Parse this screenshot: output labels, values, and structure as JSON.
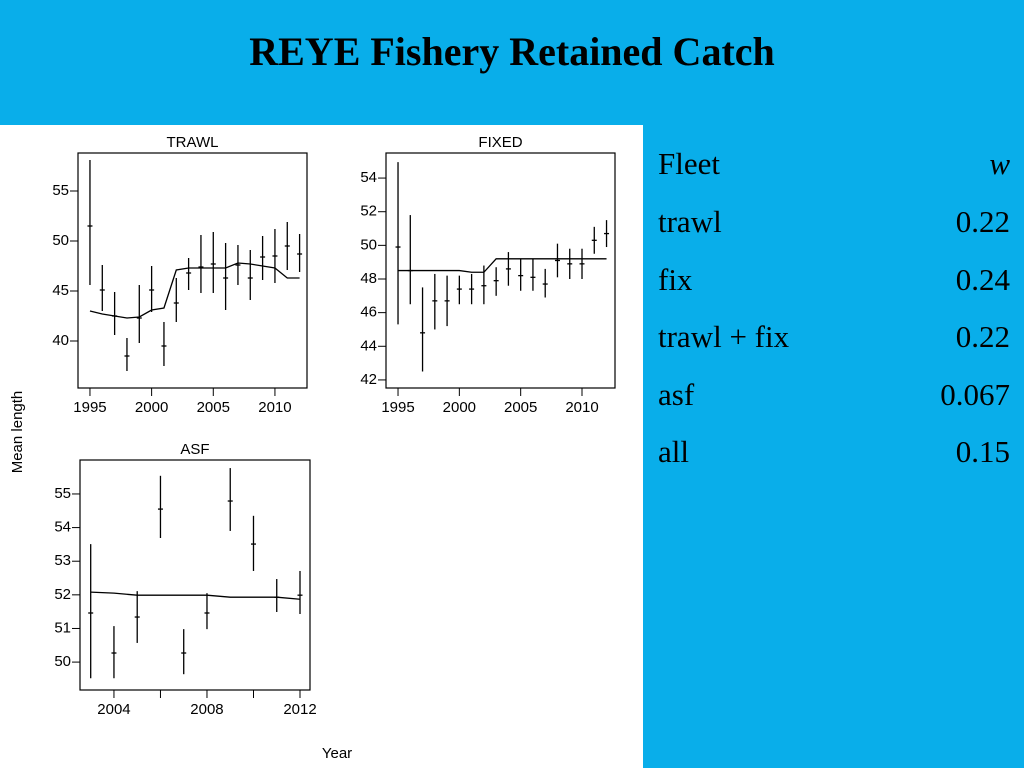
{
  "title": "REYE Fishery Retained Catch",
  "y_label": "Mean length",
  "x_label": "Year",
  "chart_data": [
    {
      "type": "errorbar",
      "title": "TRAWL",
      "x": [
        1995,
        1996,
        1997,
        1998,
        1999,
        2000,
        2001,
        2002,
        2003,
        2004,
        2005,
        2006,
        2007,
        2008,
        2009,
        2010,
        2011,
        2012
      ],
      "observed": {
        "color": "#000000",
        "values": [
          51.5,
          45.1,
          42.5,
          38.5,
          42.3,
          45.1,
          39.5,
          43.8,
          46.8,
          47.4,
          47.7,
          46.3,
          47.6,
          46.3,
          48.4,
          48.5,
          49.5,
          48.7
        ],
        "lower": [
          45.6,
          43,
          40.6,
          37,
          39.8,
          42.9,
          37.5,
          41.9,
          45.1,
          44.8,
          44.8,
          43.1,
          45.6,
          44.1,
          46.1,
          45.8,
          47.1,
          46.9
        ],
        "upper": [
          58.1,
          47.6,
          44.9,
          40.3,
          45.6,
          47.5,
          41.9,
          46.3,
          48.3,
          50.6,
          50.9,
          49.8,
          49.6,
          49.1,
          50.5,
          51.2,
          51.9,
          50.7
        ]
      },
      "fitted": [
        43,
        42.7,
        42.5,
        42.3,
        42.4,
        43.1,
        43.3,
        47.1,
        47.3,
        47.3,
        47.3,
        47.3,
        47.8,
        47.7,
        47.5,
        47.3,
        46.3,
        46.3
      ],
      "fitted_color": "#000000",
      "xlim": [
        1994.03,
        2012.6
      ],
      "xticks": [
        1995,
        2000,
        2005,
        2010
      ],
      "ylim": [
        35.3,
        58.8
      ],
      "yticks": [
        40,
        45,
        50,
        55
      ]
    },
    {
      "type": "errorbar",
      "title": "FIXED",
      "x": [
        1995,
        1996,
        1997,
        1998,
        1999,
        2000,
        2001,
        2002,
        2003,
        2004,
        2005,
        2006,
        2007,
        2008,
        2009,
        2010,
        2011,
        2012
      ],
      "observed": {
        "color": "#000000",
        "values": [
          49.9,
          48.5,
          44.8,
          46.7,
          46.7,
          47.4,
          47.4,
          47.6,
          47.9,
          48.6,
          48.2,
          48.1,
          47.7,
          49.1,
          48.9,
          48.9,
          50.3,
          50.7
        ],
        "lower": [
          45.3,
          46.5,
          42.5,
          45,
          45.2,
          46.5,
          46.5,
          46.5,
          47,
          47.6,
          47.3,
          47.3,
          46.9,
          48.1,
          48,
          48,
          49.5,
          49.9
        ],
        "upper": [
          54.95,
          51.8,
          47.5,
          48.3,
          48.2,
          48.2,
          48.3,
          48.8,
          48.7,
          49.6,
          49.2,
          49.2,
          48.6,
          50.1,
          49.8,
          49.8,
          51.1,
          51.5
        ]
      },
      "fitted": [
        48.5,
        48.5,
        48.5,
        48.5,
        48.5,
        48.5,
        48.4,
        48.4,
        49.2,
        49.2,
        49.2,
        49.2,
        49.2,
        49.2,
        49.2,
        49.2,
        49.2,
        49.2
      ],
      "fitted_color": "#000000",
      "xlim": [
        1994.02,
        2012.69
      ],
      "xticks": [
        1995,
        2000,
        2005,
        2010
      ],
      "ylim": [
        41.52,
        55.49
      ],
      "yticks": [
        42,
        44,
        46,
        48,
        50,
        52,
        54
      ]
    },
    {
      "type": "errorbar",
      "title": "ASF",
      "x": [
        2003,
        2004,
        2005,
        2006,
        2007,
        2008,
        2009,
        2010,
        2011,
        2012
      ],
      "observed": {
        "color": "#000000",
        "values": [
          51.46,
          50.27,
          51.34,
          54.55,
          50.27,
          51.46,
          54.79,
          53.51,
          51.93,
          51.99
        ],
        "lower": [
          49.52,
          49.52,
          50.57,
          53.69,
          49.64,
          50.98,
          53.9,
          52.71,
          51.49,
          51.43
        ],
        "upper": [
          53.51,
          51.07,
          52.11,
          55.54,
          50.98,
          52.05,
          55.77,
          54.35,
          52.47,
          52.71
        ]
      },
      "fitted": [
        52.08,
        52.05,
        51.99,
        51.99,
        51.99,
        51.99,
        51.93,
        51.93,
        51.93,
        51.87
      ],
      "fitted_color": "#000000",
      "xlim": [
        2002.54,
        2012.43
      ],
      "xticks": [
        2004,
        2008,
        2012
      ],
      "xticks_unlabeled": [
        2006,
        2010
      ],
      "ylim": [
        49.17,
        56.01
      ],
      "yticks": [
        50,
        51,
        52,
        53,
        54,
        55
      ]
    }
  ],
  "table": {
    "header": [
      "Fleet",
      "w"
    ],
    "rows": [
      [
        "trawl",
        "0.22"
      ],
      [
        "fix",
        "0.24"
      ],
      [
        "trawl + fix",
        "0.22"
      ],
      [
        "asf",
        "0.067"
      ],
      [
        "all",
        "0.15"
      ]
    ]
  }
}
